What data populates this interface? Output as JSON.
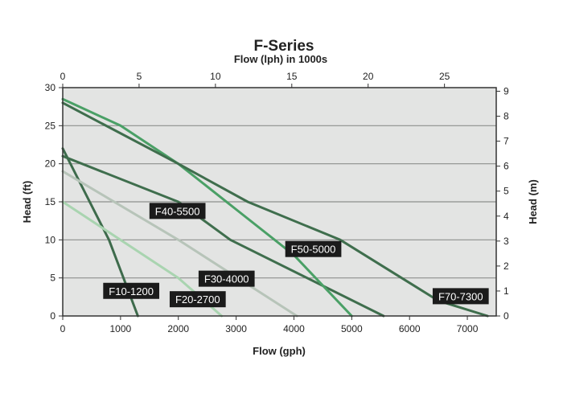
{
  "chart_data": {
    "type": "line",
    "title": "F-Series",
    "subtitle": "Flow (lph)  in 1000s",
    "xlabel": "Flow (gph)",
    "ylabel": "Head (ft)",
    "y2label": "Head (m)",
    "xlim": [
      0,
      7500
    ],
    "ylim": [
      0,
      30
    ],
    "x_ticks": [
      "0",
      "1000",
      "2000",
      "3000",
      "4000",
      "5000",
      "6000",
      "7000"
    ],
    "y_ticks": [
      "0",
      "5",
      "10",
      "15",
      "20",
      "25",
      "30"
    ],
    "x2_ticks": [
      "0",
      "5",
      "10",
      "15",
      "20",
      "25"
    ],
    "y2_ticks": [
      "0",
      "1",
      "2",
      "3",
      "4",
      "5",
      "6",
      "7",
      "8",
      "9"
    ],
    "grid": true,
    "series": [
      {
        "name": "F10-1200",
        "color": "#3e6b4c",
        "points": [
          [
            0,
            22
          ],
          [
            400,
            16
          ],
          [
            800,
            10
          ],
          [
            1100,
            4
          ],
          [
            1300,
            0
          ]
        ]
      },
      {
        "name": "F20-2700",
        "color": "#a9d4b0",
        "points": [
          [
            0,
            15
          ],
          [
            2000,
            5
          ],
          [
            2750,
            0
          ]
        ]
      },
      {
        "name": "F30-4000",
        "color": "#b7c4b9",
        "points": [
          [
            0,
            19
          ],
          [
            2000,
            10
          ],
          [
            4050,
            0
          ]
        ]
      },
      {
        "name": "F40-5500",
        "color": "#3f6e4d",
        "points": [
          [
            0,
            21
          ],
          [
            2000,
            15
          ],
          [
            2900,
            10
          ],
          [
            5550,
            0
          ]
        ]
      },
      {
        "name": "F50-5000",
        "color": "#4aa066",
        "points": [
          [
            0,
            28.5
          ],
          [
            1000,
            25
          ],
          [
            2000,
            20
          ],
          [
            3000,
            14
          ],
          [
            4000,
            8
          ],
          [
            5000,
            0
          ]
        ]
      },
      {
        "name": "F70-7300",
        "color": "#3f6e4d",
        "points": [
          [
            0,
            28
          ],
          [
            2000,
            20
          ],
          [
            3200,
            15
          ],
          [
            4800,
            10
          ],
          [
            6500,
            2
          ],
          [
            7350,
            0
          ]
        ]
      }
    ],
    "labels": [
      {
        "series": "F10-1200",
        "x": 700,
        "y": 3.3
      },
      {
        "series": "F20-2700",
        "x": 1850,
        "y": 2.2
      },
      {
        "series": "F30-4000",
        "x": 2350,
        "y": 4.9
      },
      {
        "series": "F40-5500",
        "x": 1500,
        "y": 13.8
      },
      {
        "series": "F50-5000",
        "x": 3850,
        "y": 8.8
      },
      {
        "series": "F70-7300",
        "x": 6400,
        "y": 2.6
      }
    ]
  }
}
